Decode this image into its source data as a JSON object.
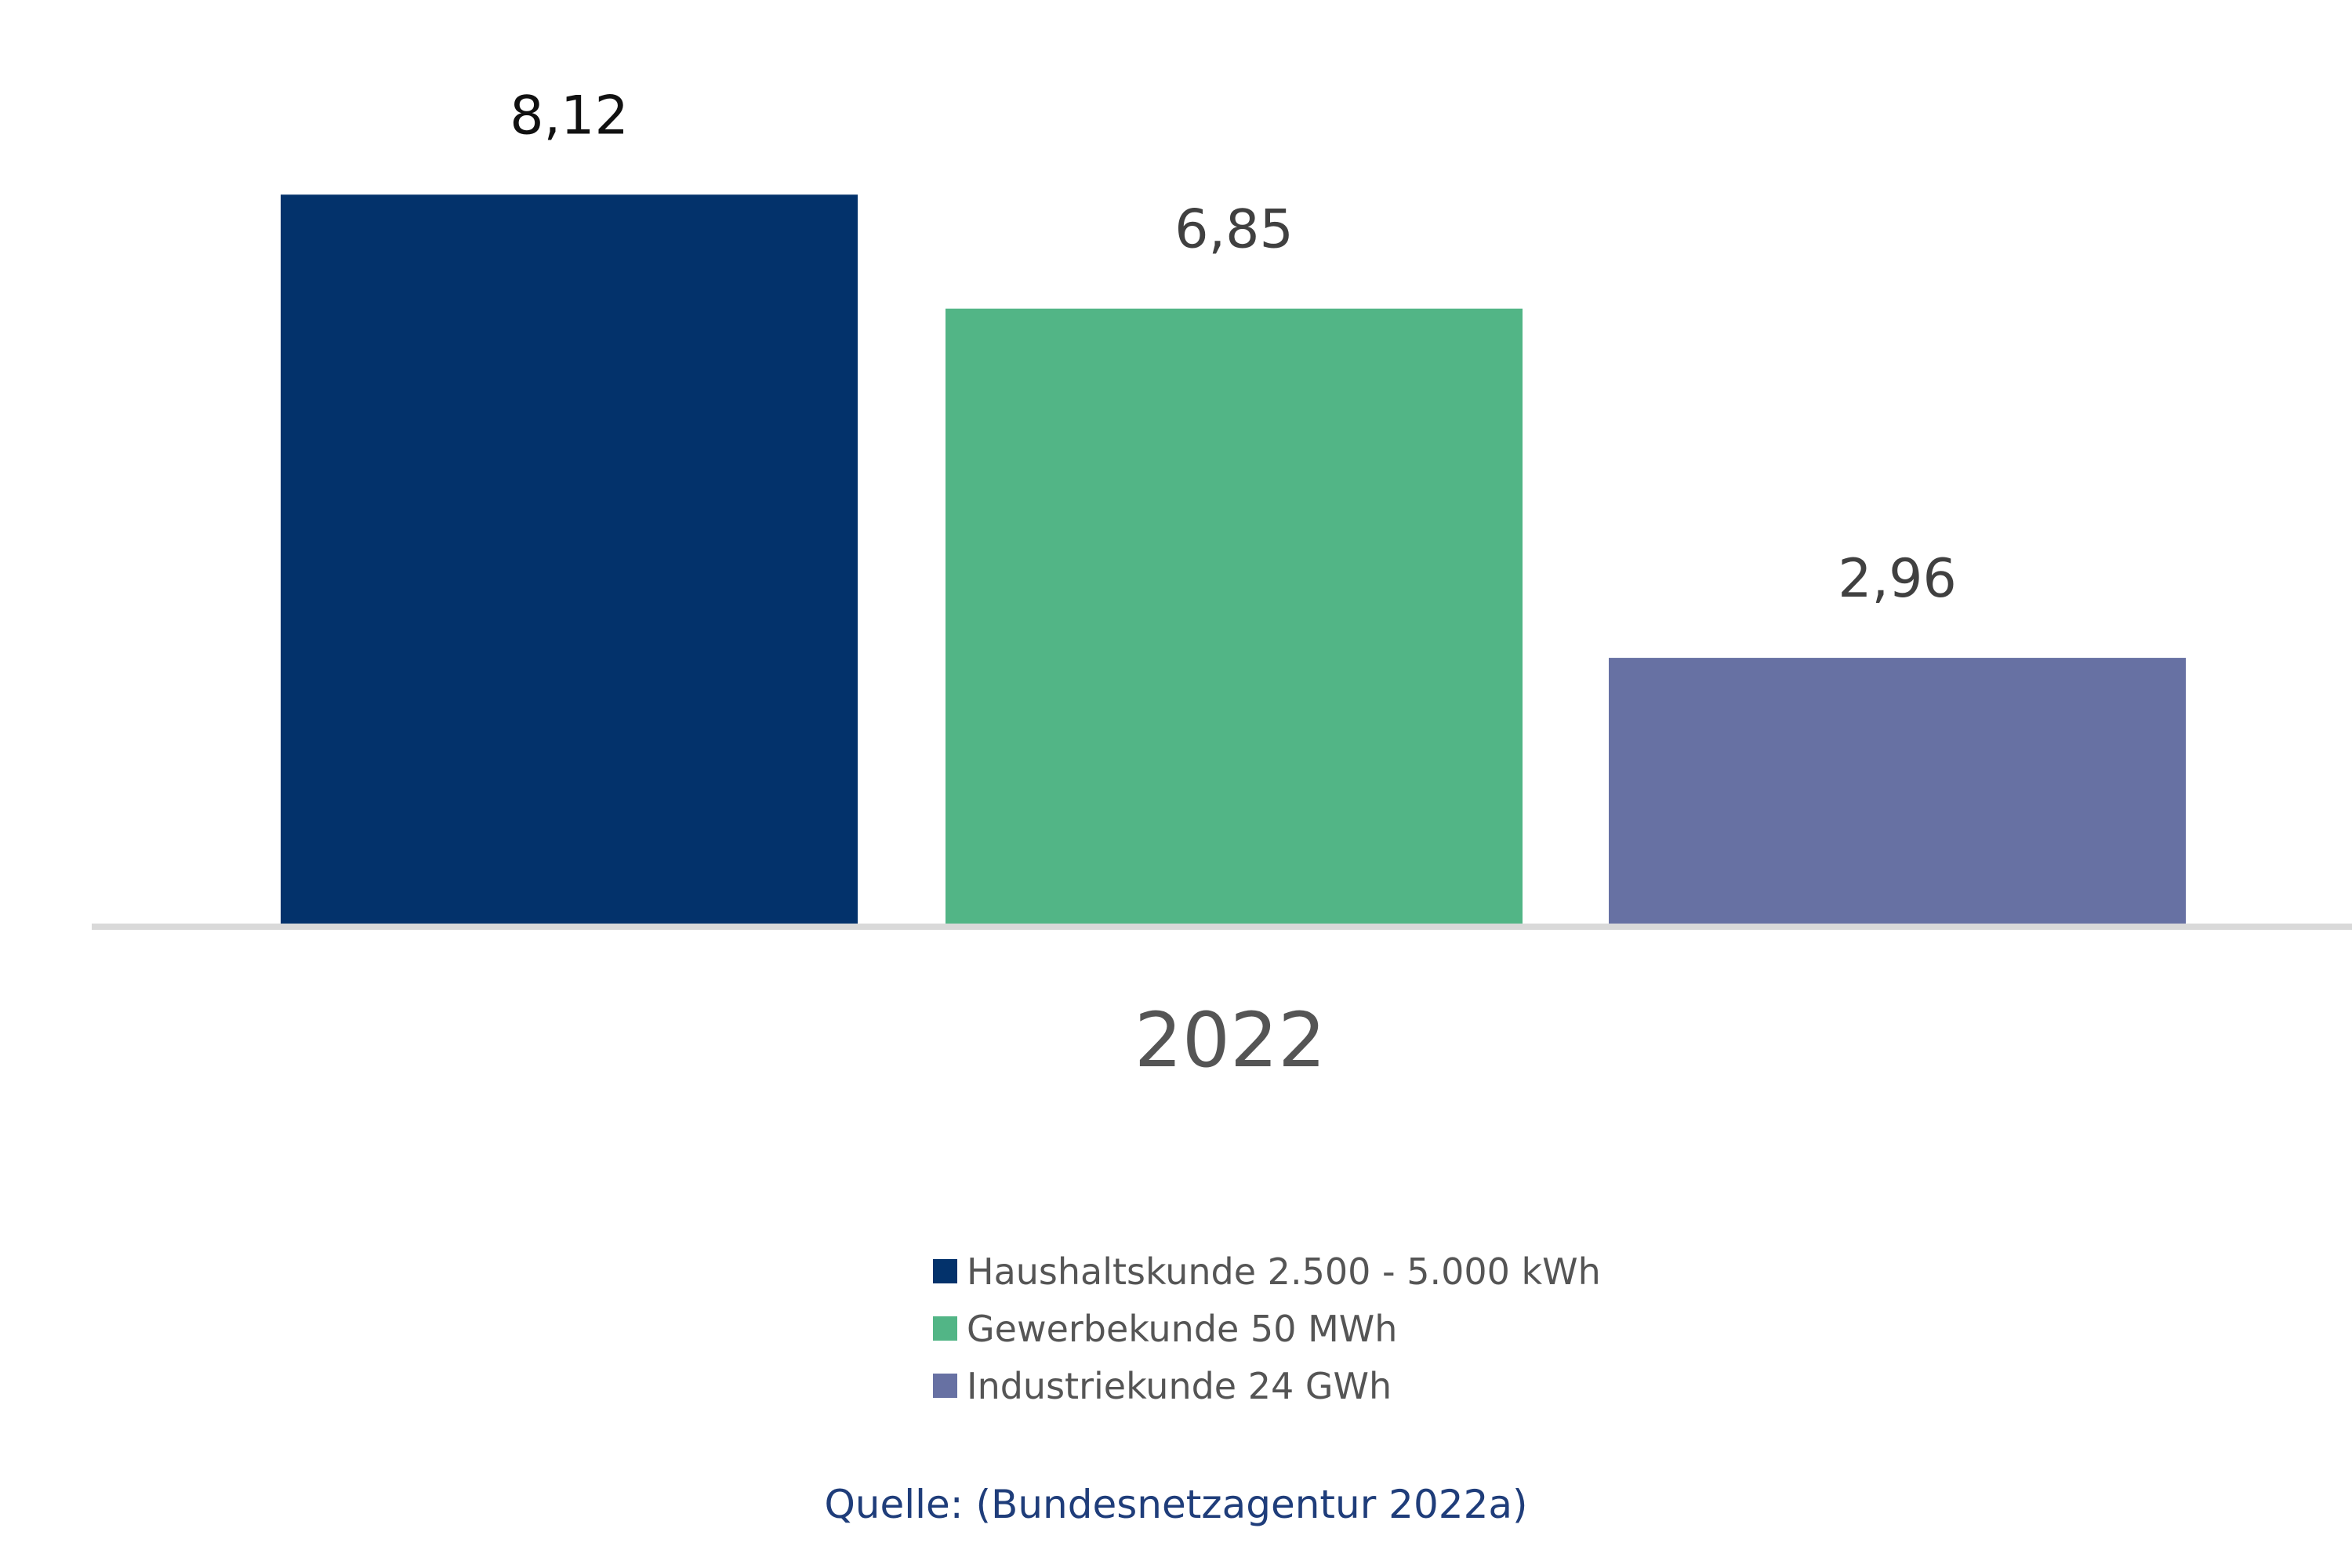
{
  "chart_data": {
    "type": "bar",
    "categories": [
      "2022"
    ],
    "series": [
      {
        "name": "Haushaltskunde 2.500 - 5.000 kWh",
        "values": [
          8.12
        ],
        "label": "8,12",
        "color": "#03326b"
      },
      {
        "name": "Gewerbekunde 50 MWh",
        "values": [
          6.85
        ],
        "label": "6,85",
        "color": "#52b586"
      },
      {
        "name": "Industriekunde 24 GWh",
        "values": [
          2.96
        ],
        "label": "2,96",
        "color": "#6771a3"
      }
    ],
    "ylim": [
      0,
      9
    ],
    "grid": false,
    "legend_position": "bottom",
    "axis_color": "#d9d9d9"
  },
  "source": "Quelle: (Bundesnetzagentur 2022a)"
}
